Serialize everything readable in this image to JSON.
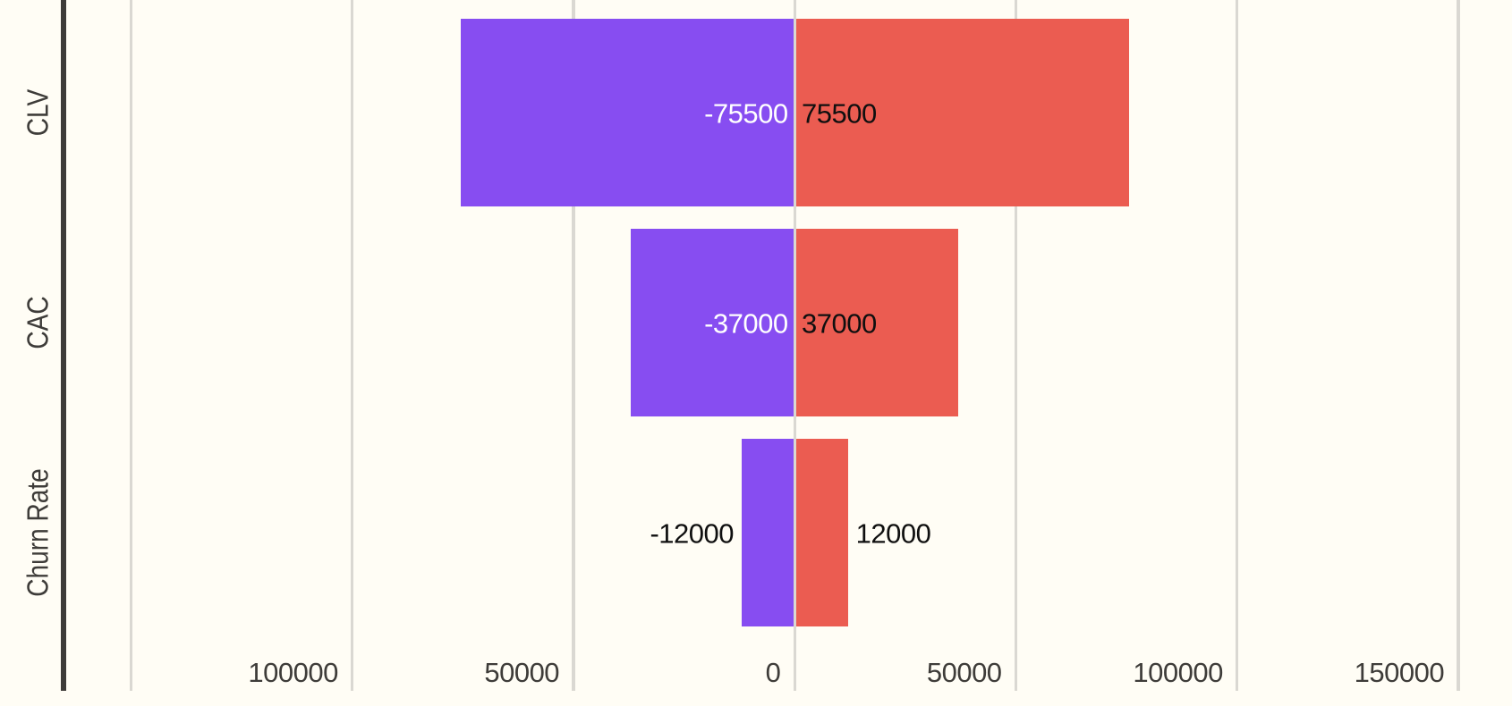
{
  "chart_data": {
    "type": "bar",
    "subtype": "horizontal-diverging-tornado",
    "title": "",
    "categories": [
      "CLV",
      "CAC",
      "Churn Rate"
    ],
    "series": [
      {
        "name": "left",
        "values": [
          -75500,
          -37000,
          -12000
        ],
        "labels": [
          "-75500",
          "-37000",
          "-12000"
        ],
        "color": "#874DF1"
      },
      {
        "name": "right",
        "values": [
          75500,
          37000,
          12000
        ],
        "labels": [
          "75500",
          "37000",
          "12000"
        ],
        "color": "#EB5C51"
      }
    ],
    "x_axis": {
      "ticks": [
        {
          "value": -150000,
          "label": ""
        },
        {
          "value": -100000,
          "label": "100000"
        },
        {
          "value": -50000,
          "label": "50000"
        },
        {
          "value": 0,
          "label": "0"
        },
        {
          "value": 50000,
          "label": "50000"
        },
        {
          "value": 100000,
          "label": "100000"
        },
        {
          "value": 150000,
          "label": "150000"
        }
      ],
      "range": [
        -165000,
        162000
      ]
    },
    "grid": "vertical-only",
    "legend": "none",
    "colors": {
      "background": "#FFFDF5",
      "gridline": "#DAD8D2",
      "axis_line": "#3E3C39",
      "tick_text": "#3E3C39",
      "category_text": "#3E3C39",
      "label_on_left_bar": "#FFFFFF",
      "label_on_right_bar": "#0F0F0F",
      "label_outside_bar": "#0F0F0F"
    }
  }
}
